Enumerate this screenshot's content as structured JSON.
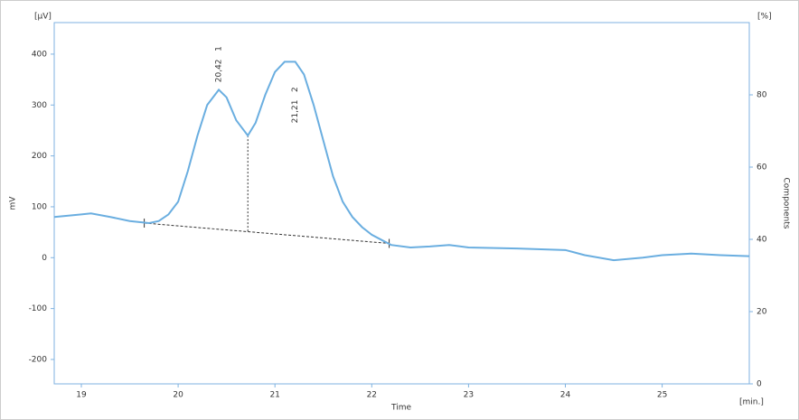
{
  "chart_data": {
    "type": "line",
    "unit_left": "[µV]",
    "unit_right": "[%]",
    "ylabel": "mV",
    "y2label": "Components",
    "xlabel": "Time",
    "xunit": "[min.]",
    "color": "#6aaee0",
    "x": [
      18.72,
      19.0,
      19.1,
      19.3,
      19.5,
      19.7,
      19.8,
      19.9,
      20.0,
      20.1,
      20.2,
      20.3,
      20.42,
      20.5,
      20.6,
      20.72,
      20.8,
      20.9,
      21.0,
      21.1,
      21.21,
      21.3,
      21.4,
      21.5,
      21.6,
      21.7,
      21.8,
      21.9,
      22.0,
      22.1,
      22.2,
      22.4,
      22.6,
      22.8,
      23.0,
      23.5,
      24.0,
      24.2,
      24.5,
      24.8,
      25.0,
      25.3,
      25.6,
      25.9
    ],
    "values": [
      80,
      85,
      87,
      80,
      72,
      68,
      72,
      85,
      110,
      170,
      240,
      300,
      330,
      315,
      270,
      240,
      265,
      320,
      365,
      385,
      385,
      360,
      300,
      230,
      160,
      110,
      80,
      60,
      45,
      35,
      25,
      20,
      22,
      25,
      20,
      18,
      15,
      5,
      -5,
      0,
      5,
      8,
      5,
      3
    ],
    "baseline": {
      "x": [
        19.65,
        22.18
      ],
      "values": [
        68,
        28
      ]
    },
    "drop_line": {
      "x": [
        20.72,
        20.72
      ],
      "values": [
        240,
        50
      ]
    },
    "annotations": [
      {
        "text": "20,42   1",
        "x": 20.42,
        "y": 380
      },
      {
        "text": "21,21   2",
        "x": 21.21,
        "y": 300
      }
    ],
    "xlim": [
      18.72,
      25.9
    ],
    "xticks": [
      19,
      20,
      21,
      22,
      23,
      24,
      25
    ],
    "ylim": [
      -248,
      462
    ],
    "yticks": [
      -200,
      -100,
      0,
      100,
      200,
      300,
      400
    ],
    "y2lim": [
      0,
      100
    ],
    "y2ticks": [
      0,
      20,
      40,
      60,
      80
    ],
    "grid": false
  }
}
